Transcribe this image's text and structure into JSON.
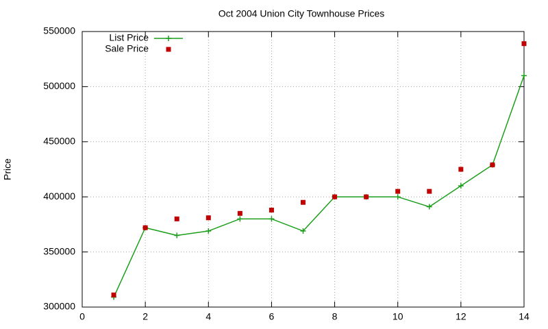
{
  "chart_data": {
    "type": "line",
    "title": "Oct 2004 Union City Townhouse Prices",
    "ylabel": "Price",
    "x": [
      1,
      2,
      3,
      4,
      5,
      6,
      7,
      8,
      9,
      10,
      11,
      12,
      13,
      14
    ],
    "series": [
      {
        "name": "List Price",
        "color": "#1a9e1a",
        "style": "linespoints",
        "values": [
          309000,
          372000,
          365000,
          369000,
          380000,
          380000,
          369000,
          400000,
          400000,
          400000,
          391000,
          410000,
          429000,
          510000
        ]
      },
      {
        "name": "Sale Price",
        "color": "#c00000",
        "style": "points",
        "values": [
          311000,
          372000,
          380000,
          381000,
          385000,
          388000,
          395000,
          400000,
          400000,
          405000,
          405000,
          425000,
          429000,
          539000
        ]
      }
    ],
    "xlim": [
      0,
      14
    ],
    "xticks": [
      0,
      2,
      4,
      6,
      8,
      10,
      12,
      14
    ],
    "ylim": [
      300000,
      550000
    ],
    "yticks": [
      300000,
      350000,
      400000,
      450000,
      500000,
      550000
    ],
    "grid": true,
    "legend": "top left"
  }
}
